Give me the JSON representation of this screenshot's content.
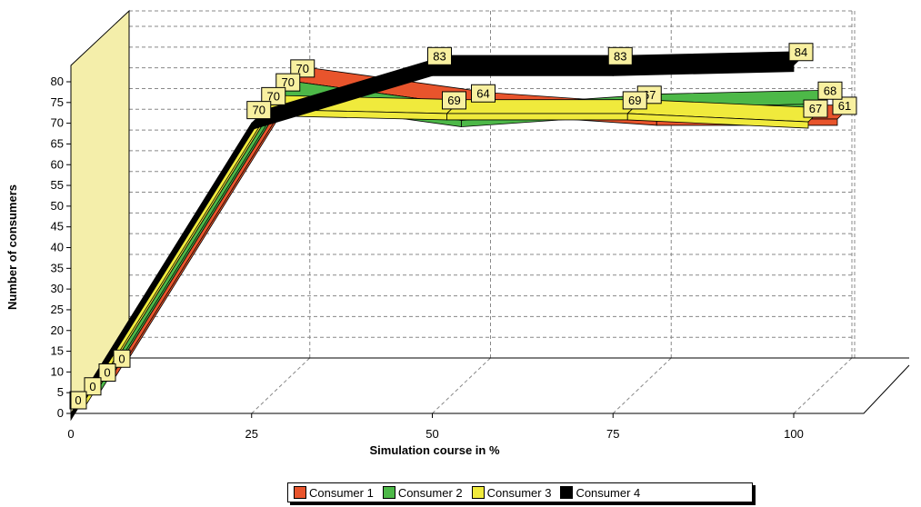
{
  "chart_data": {
    "type": "line",
    "xlabel": "Simulation course in %",
    "ylabel": "Number of consumers",
    "x": [
      0,
      25,
      50,
      75,
      100
    ],
    "x_ticks": [
      "0",
      "25",
      "50",
      "75",
      "100"
    ],
    "y_ticks": [
      "0",
      "5",
      "10",
      "15",
      "20",
      "25",
      "30",
      "35",
      "40",
      "45",
      "50",
      "55",
      "60",
      "65",
      "70",
      "75",
      "80"
    ],
    "ylim": [
      0,
      80
    ],
    "grid": true,
    "legend_position": "bottom",
    "series": [
      {
        "name": "Consumer 1",
        "color": "#e8542c",
        "values": [
          0,
          70,
          64,
          61,
          61
        ],
        "labels": [
          "0",
          "70",
          "64",
          "",
          "61"
        ]
      },
      {
        "name": "Consumer 2",
        "color": "#4db848",
        "values": [
          0,
          70,
          64,
          67,
          68
        ],
        "labels": [
          "0",
          "70",
          "",
          "67",
          "68"
        ]
      },
      {
        "name": "Consumer 3",
        "color": "#f0ea3c",
        "values": [
          0,
          70,
          69,
          69,
          67
        ],
        "labels": [
          "0",
          "70",
          "69",
          "69",
          "67"
        ]
      },
      {
        "name": "Consumer 4",
        "color": "#000000",
        "values": [
          0,
          70,
          83,
          83,
          84
        ],
        "labels": [
          "0",
          "70",
          "83",
          "83",
          "84"
        ]
      }
    ]
  }
}
